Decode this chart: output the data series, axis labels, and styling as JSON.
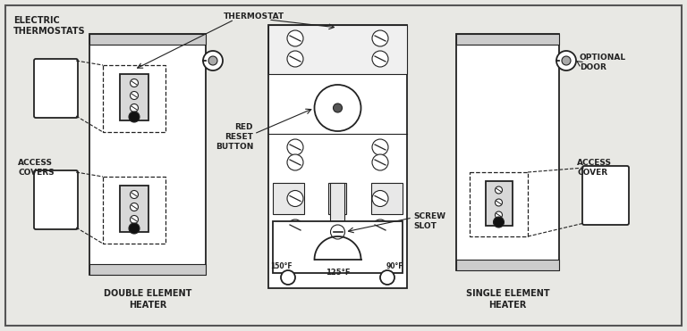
{
  "bg_color": "#e8e8e4",
  "line_color": "#222222",
  "title_left": "ELECTRIC\nTHERMOSTATS",
  "label_thermostat": "THERMOSTAT",
  "label_red_reset": "RED\nRESET\nBUTTON",
  "label_screw_slot": "SCREW\nSLOT",
  "label_access_covers": "ACCESS\nCOVERS",
  "label_access_cover": "ACCESS\nCOVER",
  "label_optional_door": "OPTIONAL\nDOOR",
  "label_double": "DOUBLE ELEMENT\nHEATER",
  "label_single": "SINGLE ELEMENT\nHEATER",
  "label_150f": "150°F",
  "label_90f": "90°F",
  "label_125f": "125°F"
}
